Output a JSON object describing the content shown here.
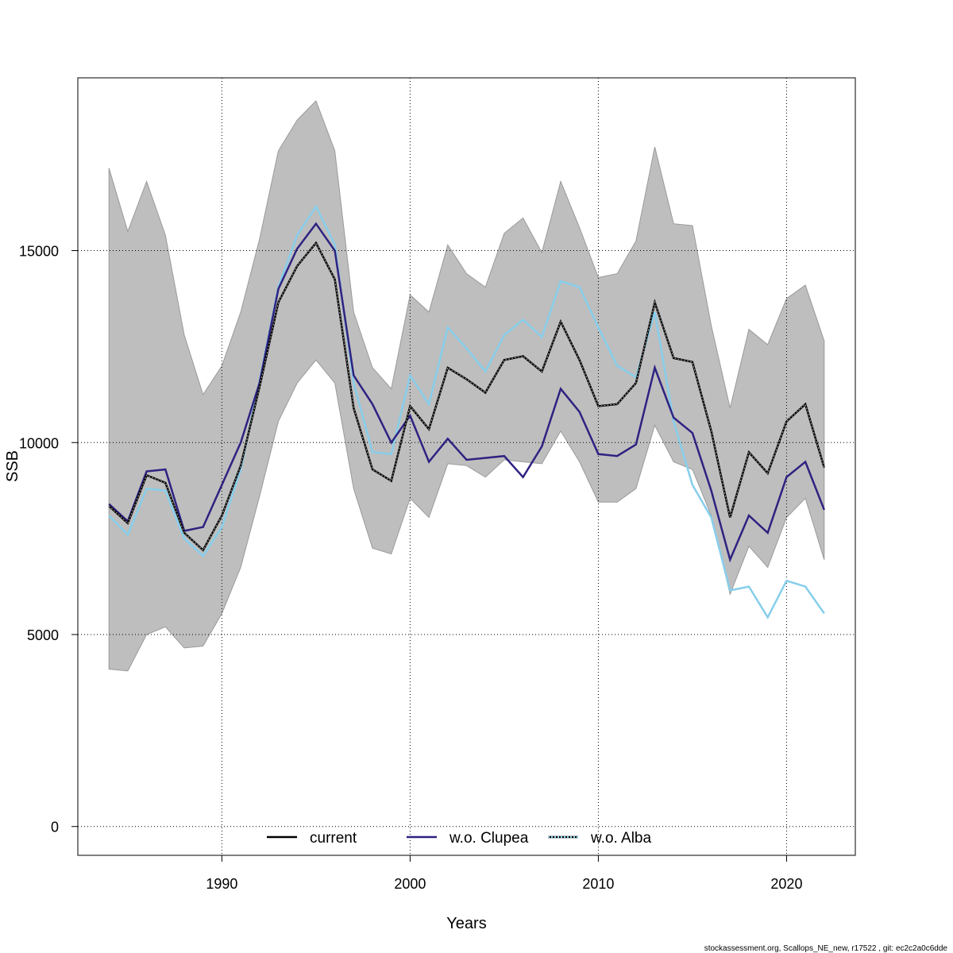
{
  "footer_text": "stockassessment.org, Scallops_NE_new, r17522 , git: ec2c2a0c6dde",
  "chart_data": {
    "type": "line",
    "xlabel": "Years",
    "ylabel": "SSB",
    "xlim": [
      1984,
      2022
    ],
    "ylim": [
      -750,
      19500
    ],
    "xticks": [
      1990,
      2000,
      2010,
      2020
    ],
    "yticks": [
      0,
      5000,
      10000,
      15000
    ],
    "grid": true,
    "legend_position": "bottom-center",
    "colors": {
      "band": "#bebebe",
      "current": "#000000",
      "clupea": "#2e2281",
      "alba": "#87ceeb"
    },
    "x": [
      1984,
      1985,
      1986,
      1987,
      1988,
      1989,
      1990,
      1991,
      1992,
      1993,
      1994,
      1995,
      1996,
      1997,
      1998,
      1999,
      2000,
      2001,
      2002,
      2003,
      2004,
      2005,
      2006,
      2007,
      2008,
      2009,
      2010,
      2011,
      2012,
      2013,
      2014,
      2015,
      2016,
      2017,
      2018,
      2019,
      2020,
      2021,
      2022
    ],
    "band": {
      "upper": [
        17150,
        15500,
        16800,
        15400,
        12800,
        11250,
        12000,
        13400,
        15300,
        17600,
        18400,
        18900,
        17600,
        13400,
        11950,
        11400,
        13850,
        13400,
        15150,
        14400,
        14050,
        15450,
        15850,
        14950,
        16800,
        15600,
        14300,
        14400,
        15250,
        17700,
        15700,
        15650,
        13050,
        10900,
        12950,
        12550,
        13750,
        14100,
        12650
      ],
      "lower": [
        4100,
        4050,
        5000,
        5200,
        4650,
        4700,
        5550,
        6750,
        8600,
        10550,
        11550,
        12150,
        11550,
        8800,
        7250,
        7100,
        8550,
        8050,
        9450,
        9400,
        9100,
        9550,
        9500,
        9450,
        10300,
        9500,
        8450,
        8450,
        8800,
        10450,
        9500,
        9300,
        8100,
        6050,
        7300,
        6750,
        8050,
        8550,
        6950
      ]
    },
    "series": [
      {
        "name": "current",
        "values": [
          8350,
          7900,
          9150,
          8950,
          7650,
          7200,
          8100,
          9400,
          11450,
          13650,
          14600,
          15200,
          14250,
          10900,
          9300,
          9000,
          10950,
          10350,
          11950,
          11650,
          11300,
          12150,
          12250,
          11850,
          13150,
          12150,
          10950,
          11000,
          11550,
          13650,
          12200,
          12100,
          10300,
          8050,
          9750,
          9200,
          10550,
          11000,
          9350
        ]
      },
      {
        "name": "w.o. Clupea",
        "values": [
          8400,
          7950,
          9250,
          9300,
          7700,
          7800,
          8900,
          10000,
          11550,
          14000,
          15050,
          15700,
          15000,
          11750,
          11000,
          10000,
          10700,
          9500,
          10100,
          9550,
          9600,
          9650,
          9100,
          9900,
          11400,
          10800,
          9700,
          9650,
          9950,
          11950,
          10650,
          10250,
          8750,
          6950,
          8100,
          7650,
          9100,
          9500,
          8250
        ]
      },
      {
        "name": "w.o. Alba",
        "values": [
          8100,
          7600,
          8800,
          8750,
          7500,
          7050,
          7800,
          9300,
          11600,
          14050,
          15400,
          16150,
          15150,
          11550,
          9750,
          9700,
          11750,
          11000,
          13000,
          12450,
          11850,
          12800,
          13200,
          12750,
          14200,
          14050,
          13000,
          12000,
          11700,
          13400,
          10550,
          8900,
          8050,
          6150,
          6250,
          5450,
          6400,
          6250,
          5550
        ]
      }
    ]
  }
}
